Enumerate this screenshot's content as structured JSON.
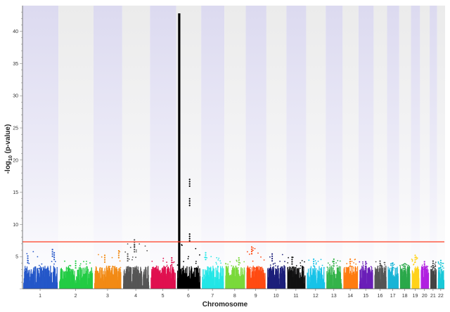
{
  "chart_data": {
    "type": "scatter",
    "subtype": "manhattan",
    "title": "",
    "xlabel": "Chromosome",
    "ylabel": "-log10 (p-value)",
    "ylabel_parts": {
      "prefix": "-log",
      "sub": "10",
      "suffix": " (p-value)"
    },
    "ylim": [
      0,
      44
    ],
    "yticks": [
      5,
      10,
      15,
      20,
      25,
      30,
      35,
      40
    ],
    "significance_threshold": {
      "value": 7.3,
      "color": "#ff3b1f"
    },
    "grid": false,
    "background_shading": "alternating lavender bands per chromosome, fading to white near the baseline",
    "chromosomes": [
      {
        "label": "1",
        "color": "#2457c9",
        "length_mb": 249,
        "max_y": 6.1,
        "peaks": [
          {
            "pos": 0.85,
            "y": 6.1
          },
          {
            "pos": 0.9,
            "y": 5.6
          },
          {
            "pos": 0.15,
            "y": 5.1
          }
        ]
      },
      {
        "label": "2",
        "color": "#22cc44",
        "length_mb": 243,
        "max_y": 4.3,
        "peaks": [
          {
            "pos": 0.5,
            "y": 4.3
          }
        ]
      },
      {
        "label": "3",
        "color": "#f28a14",
        "length_mb": 198,
        "max_y": 5.9,
        "peaks": [
          {
            "pos": 0.9,
            "y": 5.9
          },
          {
            "pos": 0.4,
            "y": 5.2
          }
        ]
      },
      {
        "label": "4",
        "color": "#555555",
        "length_mb": 191,
        "max_y": 7.6,
        "peaks": [
          {
            "pos": 0.45,
            "y": 7.6
          },
          {
            "pos": 0.45,
            "y": 6.8
          },
          {
            "pos": 0.2,
            "y": 5.4
          }
        ]
      },
      {
        "label": "5",
        "color": "#e0104f",
        "length_mb": 181,
        "max_y": 4.8,
        "peaks": [
          {
            "pos": 0.85,
            "y": 4.8
          }
        ]
      },
      {
        "label": "6",
        "color": "#000000",
        "length_mb": 171,
        "max_y": 42.8,
        "peaks": [
          {
            "pos": 0.12,
            "y": 42.8
          },
          {
            "pos": 0.55,
            "y": 17.0
          },
          {
            "pos": 0.55,
            "y": 14.0
          },
          {
            "pos": 0.55,
            "y": 8.5
          }
        ]
      },
      {
        "label": "7",
        "color": "#22e6e6",
        "length_mb": 159,
        "max_y": 5.6,
        "peaks": [
          {
            "pos": 0.2,
            "y": 5.6
          }
        ]
      },
      {
        "label": "8",
        "color": "#7ad93b",
        "length_mb": 146,
        "max_y": 4.8,
        "peaks": [
          {
            "pos": 0.7,
            "y": 4.8
          }
        ]
      },
      {
        "label": "9",
        "color": "#ff4a12",
        "length_mb": 141,
        "max_y": 6.5,
        "peaks": [
          {
            "pos": 0.3,
            "y": 6.5
          }
        ]
      },
      {
        "label": "10",
        "color": "#1c1f7a",
        "length_mb": 136,
        "max_y": 5.4,
        "peaks": [
          {
            "pos": 0.3,
            "y": 5.4
          }
        ]
      },
      {
        "label": "11",
        "color": "#111111",
        "length_mb": 135,
        "max_y": 4.9,
        "peaks": [
          {
            "pos": 0.3,
            "y": 4.9
          }
        ]
      },
      {
        "label": "12",
        "color": "#17c3e8",
        "length_mb": 133,
        "max_y": 4.6,
        "peaks": [
          {
            "pos": 0.4,
            "y": 4.6
          }
        ]
      },
      {
        "label": "13",
        "color": "#34b34a",
        "length_mb": 115,
        "max_y": 4.6,
        "peaks": [
          {
            "pos": 0.5,
            "y": 4.6
          }
        ]
      },
      {
        "label": "14",
        "color": "#ff7c12",
        "length_mb": 107,
        "max_y": 4.6,
        "peaks": [
          {
            "pos": 0.5,
            "y": 4.6
          }
        ]
      },
      {
        "label": "15",
        "color": "#6a1fb8",
        "length_mb": 102,
        "max_y": 4.2,
        "peaks": [
          {
            "pos": 0.5,
            "y": 4.2
          }
        ]
      },
      {
        "label": "16",
        "color": "#555555",
        "length_mb": 90,
        "max_y": 4.3,
        "peaks": [
          {
            "pos": 0.5,
            "y": 4.3
          }
        ]
      },
      {
        "label": "17",
        "color": "#19b4d6",
        "length_mb": 81,
        "max_y": 4.0,
        "peaks": [
          {
            "pos": 0.5,
            "y": 4.0
          }
        ]
      },
      {
        "label": "18",
        "color": "#2aa84a",
        "length_mb": 78,
        "max_y": 3.9,
        "peaks": [
          {
            "pos": 0.5,
            "y": 3.9
          }
        ]
      },
      {
        "label": "19",
        "color": "#ffd21a",
        "length_mb": 59,
        "max_y": 5.2,
        "peaks": [
          {
            "pos": 0.5,
            "y": 5.2
          }
        ]
      },
      {
        "label": "20",
        "color": "#b020e0",
        "length_mb": 63,
        "max_y": 4.2,
        "peaks": [
          {
            "pos": 0.5,
            "y": 4.2
          }
        ]
      },
      {
        "label": "21",
        "color": "#444444",
        "length_mb": 48,
        "max_y": 4.3,
        "peaks": [
          {
            "pos": 0.5,
            "y": 4.3
          }
        ]
      },
      {
        "label": "22",
        "color": "#19c8d8",
        "length_mb": 51,
        "max_y": 4.4,
        "peaks": [
          {
            "pos": 0.5,
            "y": 4.4
          }
        ]
      }
    ]
  }
}
